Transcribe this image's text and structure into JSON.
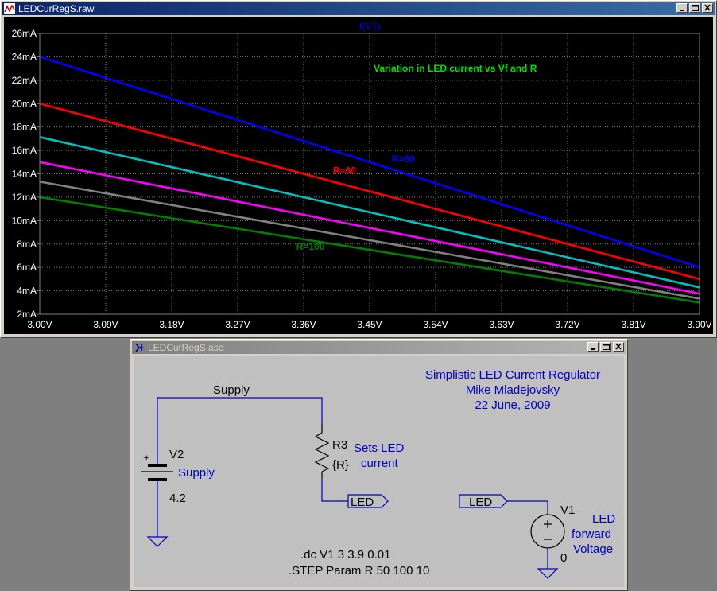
{
  "plot_window": {
    "title": "LEDCurRegS.raw",
    "trace_label": "I(V1)",
    "annotation": "Variation in LED current vs Vf and R"
  },
  "schematic_window": {
    "title": "LEDCurRegS.asc",
    "header_lines": [
      "Simplistic LED Current Regulator",
      "Mike Mladejovsky",
      "22 June, 2009"
    ],
    "net_supply": "Supply",
    "v2_name": "V2",
    "v2_value": "4.2",
    "v2_comment": "Supply",
    "r3_name": "R3",
    "r3_value": "{R}",
    "r3_comment_1": "Sets LED",
    "r3_comment_2": "current",
    "port_led_1": "LED",
    "port_led_2": "LED",
    "v1_name": "V1",
    "v1_value": "0",
    "v1_comment_1": "LED",
    "v1_comment_2": "forward",
    "v1_comment_3": "Voltage",
    "directive_dc": ".dc V1 3 3.9 0.01",
    "directive_step": ".STEP Param R 50 100 10"
  },
  "colors": {
    "background": "#000000",
    "grid": "#808080",
    "axis_text": "#ffffff",
    "annotation": "#00e000",
    "schematic_text_blue": "#0000c0"
  },
  "chart_data": {
    "type": "line",
    "title": "I(V1)",
    "xlabel": "",
    "ylabel": "",
    "x_ticks": [
      "3.00V",
      "3.09V",
      "3.18V",
      "3.27V",
      "3.36V",
      "3.45V",
      "3.54V",
      "3.63V",
      "3.72V",
      "3.81V",
      "3.90V"
    ],
    "y_ticks": [
      "2mA",
      "4mA",
      "6mA",
      "8mA",
      "10mA",
      "12mA",
      "14mA",
      "16mA",
      "18mA",
      "20mA",
      "22mA",
      "24mA",
      "26mA"
    ],
    "xlim": [
      3.0,
      3.9
    ],
    "ylim": [
      2,
      26
    ],
    "grid": true,
    "x": [
      3.0,
      3.9
    ],
    "series": [
      {
        "name": "R=50",
        "color": "#0000ff",
        "values": [
          24.0,
          6.0
        ]
      },
      {
        "name": "R=60",
        "color": "#ff0000",
        "values": [
          20.0,
          5.0
        ]
      },
      {
        "name": "",
        "color": "#00c0c0",
        "values": [
          17.14,
          4.29
        ]
      },
      {
        "name": "",
        "color": "#ff00ff",
        "values": [
          15.0,
          3.75
        ]
      },
      {
        "name": "",
        "color": "#808080",
        "values": [
          13.33,
          3.33
        ]
      },
      {
        "name": "R=100",
        "color": "#008000",
        "values": [
          12.0,
          3.0
        ]
      }
    ],
    "series_labels": [
      {
        "text": "R=50",
        "color": "#0000ff",
        "x": 3.48,
        "y": 15.0
      },
      {
        "text": "R=60",
        "color": "#ff0000",
        "x": 3.4,
        "y": 14.0
      },
      {
        "text": "R=100",
        "color": "#008000",
        "x": 3.35,
        "y": 7.5
      }
    ]
  }
}
